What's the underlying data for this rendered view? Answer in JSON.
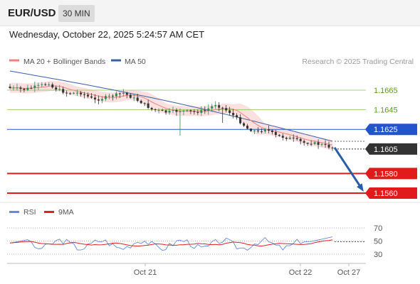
{
  "header": {
    "pair": "EUR/USD",
    "timeframe": "30 MIN"
  },
  "datetime": "Wednesday, October 22, 2025 5:24:57 AM CET",
  "legend": {
    "ma20_label": "MA 20 + Bollinger Bands",
    "ma50_label": "MA 50",
    "credit": "Research © 2025 Trading Central"
  },
  "rsi_legend": {
    "rsi_label": "RSI",
    "ma_label": "9MA"
  },
  "colors": {
    "up": "#2e8b57",
    "down": "#333333",
    "ma20": "#f08080",
    "ma50": "#3a5fa8",
    "bands": "#f9d6d6",
    "resistance_green": "#8bc34a",
    "pivot_blue": "#2255cc",
    "support_red": "#e11b1b",
    "current": "#333333",
    "arrow": "#2a5da8",
    "rsi": "#6688dd",
    "rsi_ma": "#dd2222"
  },
  "chart_data": [
    {
      "type": "candlestick",
      "title": "",
      "ylim": [
        1.5535,
        1.5695
      ],
      "x_ticks": [
        "Oct 21",
        "Oct 22",
        "Oct 27"
      ],
      "levels": [
        {
          "label": "1.1665",
          "value": 1.1665,
          "kind": "resistance"
        },
        {
          "label": "1.1645",
          "value": 1.1645,
          "kind": "resistance"
        },
        {
          "label": "1.1625",
          "value": 1.1625,
          "kind": "pivot"
        },
        {
          "label": "1.1605",
          "value": 1.1605,
          "kind": "current"
        },
        {
          "label": "1.1580",
          "value": 1.158,
          "kind": "support"
        },
        {
          "label": "1.1560",
          "value": 1.156,
          "kind": "support"
        }
      ],
      "series": [
        {
          "name": "MA 20 + Bollinger Bands"
        },
        {
          "name": "MA 50"
        }
      ],
      "forecast": {
        "from": 1.1605,
        "to": 1.156
      }
    },
    {
      "type": "line",
      "title": "",
      "ylim": [
        18,
        82
      ],
      "y_ticks": [
        70,
        50,
        30
      ],
      "series": [
        {
          "name": "RSI"
        },
        {
          "name": "9MA"
        }
      ]
    }
  ]
}
